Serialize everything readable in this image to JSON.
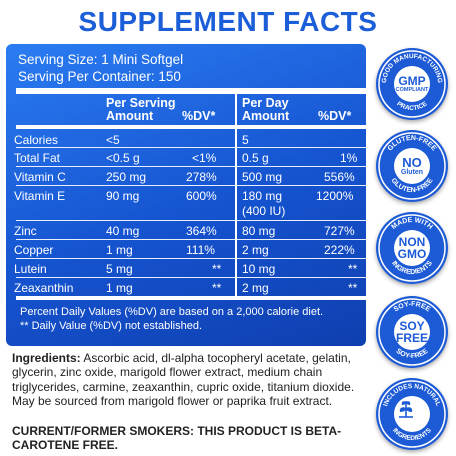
{
  "title": "SUPPLEMENT FACTS",
  "serving_size": "Serving Size: 1 Mini Softgel",
  "servings_per_container": "Serving Per Container: 150",
  "columns": {
    "per_serving": "Per Serving",
    "per_day": "Per Day",
    "amount": "Amount",
    "dv": "%DV*"
  },
  "rows": [
    {
      "name": "Calories",
      "serv_amount": "<5",
      "serv_dv": "",
      "day_amount": "5",
      "day_dv": ""
    },
    {
      "name": "Total Fat",
      "serv_amount": "<0.5 g",
      "serv_dv": "<1%",
      "day_amount": "0.5 g",
      "day_dv": "1%"
    },
    {
      "name": "Vitamin C",
      "serv_amount": "250 mg",
      "serv_dv": "278%",
      "day_amount": "500 mg",
      "day_dv": "556%"
    },
    {
      "name": "Vitamin E",
      "serv_amount": "90 mg",
      "serv_dv": "600%",
      "day_amount": "180 mg",
      "day_amount2": "(400 IU)",
      "day_dv": "1200%"
    },
    {
      "name": "Zinc",
      "serv_amount": "40 mg",
      "serv_dv": "364%",
      "day_amount": "80 mg",
      "day_dv": "727%"
    },
    {
      "name": "Copper",
      "serv_amount": "1 mg",
      "serv_dv": "111%",
      "day_amount": "2 mg",
      "day_dv": "222%"
    },
    {
      "name": "Lutein",
      "serv_amount": "5 mg",
      "serv_dv": "**",
      "day_amount": "10 mg",
      "day_dv": "**"
    },
    {
      "name": "Zeaxanthin",
      "serv_amount": "1 mg",
      "serv_dv": "**",
      "day_amount": "2 mg",
      "day_dv": "**"
    }
  ],
  "footnote1": "Percent Daily Values (%DV) are based on a 2,000 calorie diet.",
  "footnote2": "** Daily Value (%DV) not established.",
  "ingredients_label": "Ingredients:",
  "ingredients_text": " Ascorbic acid, dl-alpha tocopheryl acetate, gelatin, glycerin, zinc oxide, marigold flower extract, medium chain triglycerides, carmine, zeaxanthin, cupric oxide, titanium dioxide. May be sourced from marigold flower or paprika fruit extract.",
  "warning": "CURRENT/FORMER SMOKERS: THIS PRODUCT IS BETA-CAROTENE FREE.",
  "badges": [
    {
      "top": "GOOD MANUFACTURING",
      "bottom": "PRACTICE",
      "line1": "GMP",
      "line2": "COMPLIANT",
      "icon": "gmp-icon"
    },
    {
      "top": "GLUTEN-FREE",
      "bottom": "GLUTEN-FREE",
      "line1": "NO",
      "line2": "Gluten",
      "icon": "gluten-free-icon"
    },
    {
      "top": "MADE WITH",
      "bottom": "INGREDIENTS",
      "line1": "NON",
      "line2": "GMO",
      "icon": "non-gmo-icon"
    },
    {
      "top": "SOY-FREE",
      "bottom": "SOY-FREE",
      "line1": "SOY",
      "line2": "FREE",
      "icon": "soy-free-icon"
    },
    {
      "top": "INCLUDES NATURAL",
      "bottom": "INGREDIENTS",
      "line1": "",
      "line2": "",
      "icon": "leaf-icon"
    }
  ],
  "colors": {
    "brand_blue": "#1c5ed8",
    "panel_blue": "#1553cf",
    "white": "#ffffff"
  }
}
